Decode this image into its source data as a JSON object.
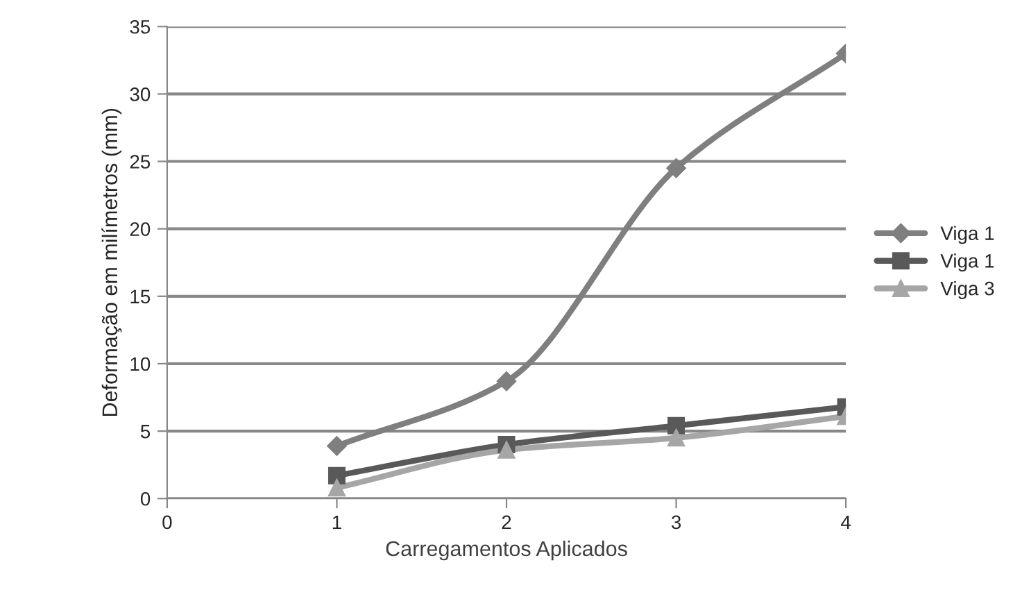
{
  "chart_data": {
    "type": "line",
    "xlabel": "Carregamentos Aplicados",
    "ylabel": "Deformação em milímetros (mm)",
    "x": [
      1,
      2,
      3,
      4
    ],
    "xlim": [
      0,
      4
    ],
    "xticks": [
      0,
      1,
      2,
      3,
      4
    ],
    "ylim": [
      0,
      35
    ],
    "yticks": [
      0,
      5,
      10,
      15,
      20,
      25,
      30,
      35
    ],
    "grid": "y",
    "legend": "right",
    "line_style": "solid",
    "series": [
      {
        "name": "Viga 1",
        "color": "#7f7f7f",
        "marker": "diamond",
        "values": [
          3.9,
          8.7,
          24.5,
          33
        ]
      },
      {
        "name": "Viga 1",
        "color": "#595959",
        "marker": "square",
        "values": [
          1.7,
          4.0,
          5.4,
          6.8
        ]
      },
      {
        "name": "Viga 3",
        "color": "#a6a6a6",
        "marker": "triangle",
        "values": [
          0.8,
          3.6,
          4.5,
          6.1
        ]
      }
    ]
  }
}
